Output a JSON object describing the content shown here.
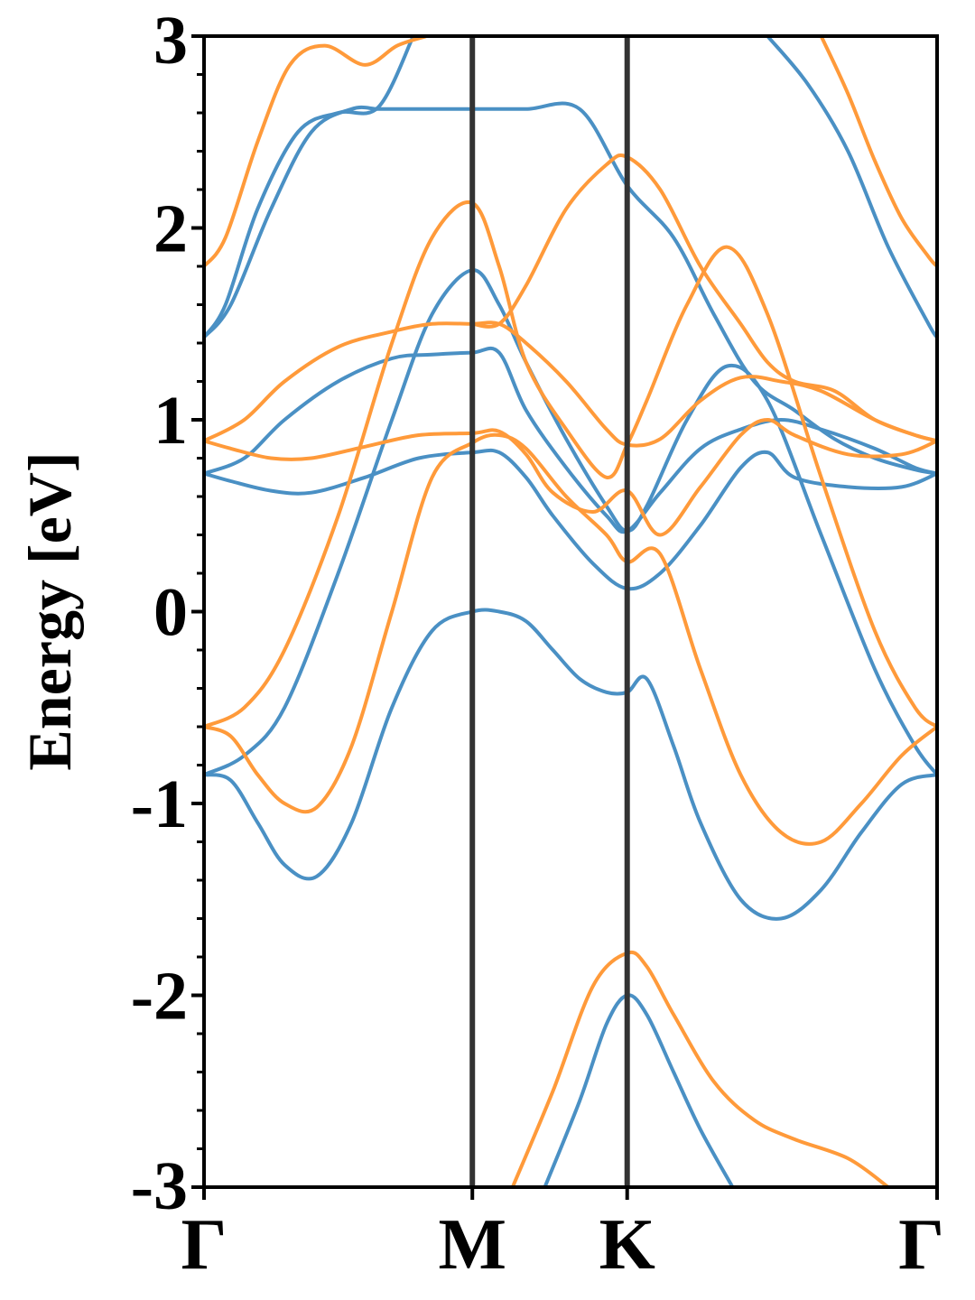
{
  "chart_data": {
    "type": "line",
    "title": "",
    "ylabel": "Energy [eV]",
    "xlabel": "",
    "ylim": [
      -3,
      3
    ],
    "xlim": [
      0,
      2.732
    ],
    "y_ticks": [
      "-3",
      "-2",
      "-1",
      "0",
      "1",
      "2",
      "3"
    ],
    "y_tick_values": [
      -3,
      -2,
      -1,
      0,
      1,
      2,
      3
    ],
    "k_points": [
      {
        "label": "Γ",
        "x": 0
      },
      {
        "label": "M",
        "x": 1.0
      },
      {
        "label": "K",
        "x": 1.577
      },
      {
        "label": "Γ",
        "x": 2.732
      }
    ],
    "grid": false,
    "legend": "none",
    "colors": {
      "spin_a": "#4a90c4",
      "spin_b": "#ff9a3a",
      "axis": "#000000",
      "kline": "#333333"
    },
    "series": [
      {
        "group": "spin_a",
        "x": [
          0,
          0.1,
          0.2,
          0.3,
          0.42,
          0.55,
          0.7,
          0.85,
          1.0,
          1.1,
          1.2,
          1.3,
          1.4,
          1.5,
          1.577,
          1.65,
          1.75,
          1.85,
          2.0,
          2.15,
          2.3,
          2.45,
          2.6,
          2.732
        ],
        "y": [
          -0.85,
          -0.88,
          -1.1,
          -1.32,
          -1.38,
          -1.1,
          -0.5,
          -0.1,
          0.0,
          0.0,
          -0.05,
          -0.2,
          -0.35,
          -0.42,
          -0.42,
          -0.35,
          -0.7,
          -1.1,
          -1.5,
          -1.6,
          -1.45,
          -1.15,
          -0.9,
          -0.85
        ]
      },
      {
        "group": "spin_a",
        "x": [
          0,
          0.15,
          0.3,
          0.5,
          0.7,
          0.85,
          1.0,
          1.1,
          1.2,
          1.35,
          1.5,
          1.577,
          1.65,
          1.8,
          1.95,
          2.1,
          2.3,
          2.5,
          2.65,
          2.732
        ],
        "y": [
          -0.85,
          -0.75,
          -0.5,
          0.2,
          1.0,
          1.55,
          1.78,
          1.6,
          1.3,
          0.9,
          0.55,
          0.42,
          0.55,
          1.0,
          1.28,
          1.1,
          0.4,
          -0.3,
          -0.7,
          -0.85
        ]
      },
      {
        "group": "spin_a",
        "x": [
          0,
          0.1,
          0.25,
          0.4,
          0.6,
          0.8,
          1.0,
          1.1,
          1.2,
          1.3,
          1.45,
          1.577,
          1.7,
          1.85,
          2.0,
          2.1,
          2.2,
          2.4,
          2.6,
          2.732
        ],
        "y": [
          0.72,
          0.68,
          0.63,
          0.62,
          0.7,
          0.8,
          0.83,
          0.83,
          0.7,
          0.5,
          0.25,
          0.12,
          0.2,
          0.45,
          0.75,
          0.83,
          0.7,
          0.65,
          0.65,
          0.72
        ]
      },
      {
        "group": "spin_a",
        "x": [
          0,
          0.15,
          0.3,
          0.5,
          0.7,
          0.85,
          1.0,
          1.1,
          1.2,
          1.35,
          1.5,
          1.577,
          1.7,
          1.85,
          2.0,
          2.15,
          2.3,
          2.5,
          2.65,
          2.732
        ],
        "y": [
          0.72,
          0.8,
          1.0,
          1.2,
          1.32,
          1.34,
          1.35,
          1.35,
          1.05,
          0.75,
          0.5,
          0.42,
          0.62,
          0.85,
          0.95,
          1.0,
          0.95,
          0.85,
          0.75,
          0.72
        ]
      },
      {
        "group": "spin_a",
        "x": [
          0,
          0.1,
          0.25,
          0.4,
          0.55,
          0.65,
          0.75,
          0.85,
          1.0,
          1.2,
          1.4,
          1.577,
          1.75,
          1.9,
          2.05,
          2.2,
          2.35,
          2.5,
          2.65,
          2.732
        ],
        "y": [
          1.43,
          1.6,
          2.1,
          2.5,
          2.62,
          2.62,
          2.62,
          2.62,
          2.62,
          2.62,
          2.62,
          2.22,
          1.95,
          1.55,
          1.2,
          1.05,
          0.9,
          0.8,
          0.74,
          0.72
        ]
      },
      {
        "group": "spin_a",
        "x": [
          0,
          0.08,
          0.2,
          0.35,
          0.5,
          0.65,
          0.78
        ],
        "y": [
          1.43,
          1.6,
          2.1,
          2.5,
          2.6,
          2.63,
          3.0
        ]
      },
      {
        "group": "spin_a",
        "x": [
          2.1,
          2.25,
          2.4,
          2.55,
          2.7,
          2.732
        ],
        "y": [
          3.0,
          2.75,
          2.4,
          1.9,
          1.5,
          1.43
        ]
      },
      {
        "group": "spin_a",
        "x": [
          1.27,
          1.4,
          1.5,
          1.577,
          1.65,
          1.75,
          1.85,
          1.97
        ],
        "y": [
          -3.0,
          -2.55,
          -2.15,
          -2.0,
          -2.1,
          -2.4,
          -2.7,
          -3.0
        ]
      },
      {
        "group": "spin_b",
        "x": [
          0,
          0.1,
          0.2,
          0.3,
          0.42,
          0.55,
          0.7,
          0.85,
          1.0,
          1.1,
          1.2,
          1.35,
          1.5,
          1.577,
          1.7,
          1.85,
          2.0,
          2.15,
          2.3,
          2.45,
          2.6,
          2.732
        ],
        "y": [
          -0.6,
          -0.65,
          -0.85,
          -1.0,
          -1.02,
          -0.7,
          0.0,
          0.7,
          0.88,
          0.92,
          0.85,
          0.6,
          0.4,
          0.26,
          0.3,
          -0.3,
          -0.85,
          -1.15,
          -1.2,
          -1.0,
          -0.75,
          -0.6
        ]
      },
      {
        "group": "spin_b",
        "x": [
          0,
          0.15,
          0.3,
          0.5,
          0.7,
          0.85,
          1.0,
          1.1,
          1.2,
          1.35,
          1.5,
          1.577,
          1.65,
          1.8,
          1.95,
          2.1,
          2.3,
          2.5,
          2.65,
          2.732
        ],
        "y": [
          -0.6,
          -0.5,
          -0.2,
          0.5,
          1.4,
          1.95,
          2.13,
          1.8,
          1.3,
          0.95,
          0.7,
          0.87,
          1.1,
          1.6,
          1.9,
          1.55,
          0.7,
          -0.1,
          -0.5,
          -0.6
        ]
      },
      {
        "group": "spin_b",
        "x": [
          0,
          0.1,
          0.25,
          0.4,
          0.6,
          0.8,
          1.0,
          1.1,
          1.2,
          1.3,
          1.45,
          1.577,
          1.7,
          1.85,
          2.0,
          2.1,
          2.2,
          2.4,
          2.6,
          2.732
        ],
        "y": [
          0.89,
          0.85,
          0.8,
          0.8,
          0.86,
          0.92,
          0.93,
          0.94,
          0.82,
          0.62,
          0.52,
          0.63,
          0.4,
          0.65,
          0.92,
          1.0,
          0.92,
          0.82,
          0.82,
          0.89
        ]
      },
      {
        "group": "spin_b",
        "x": [
          0,
          0.15,
          0.3,
          0.5,
          0.7,
          0.85,
          1.0,
          1.1,
          1.2,
          1.35,
          1.5,
          1.577,
          1.7,
          1.85,
          2.0,
          2.15,
          2.3,
          2.5,
          2.65,
          2.732
        ],
        "y": [
          0.89,
          1.0,
          1.2,
          1.38,
          1.46,
          1.5,
          1.5,
          1.5,
          1.4,
          1.2,
          0.95,
          0.87,
          0.9,
          1.1,
          1.22,
          1.2,
          1.15,
          1.0,
          0.92,
          0.89
        ]
      },
      {
        "group": "spin_b",
        "x": [
          1.0,
          1.1,
          1.2,
          1.35,
          1.5,
          1.577,
          1.7,
          1.85,
          2.0,
          2.1,
          2.2,
          2.35,
          2.5,
          2.65,
          2.732
        ],
        "y": [
          1.5,
          1.5,
          1.7,
          2.1,
          2.33,
          2.37,
          2.2,
          1.8,
          1.5,
          1.3,
          1.2,
          1.15,
          1.0,
          0.92,
          0.89
        ]
      },
      {
        "group": "spin_b",
        "x": [
          0,
          0.08,
          0.2,
          0.32,
          0.45,
          0.6,
          0.72,
          0.83
        ],
        "y": [
          1.8,
          1.95,
          2.45,
          2.85,
          2.95,
          2.85,
          2.95,
          3.0
        ]
      },
      {
        "group": "spin_b",
        "x": [
          2.3,
          2.4,
          2.5,
          2.6,
          2.7,
          2.732
        ],
        "y": [
          3.0,
          2.7,
          2.35,
          2.05,
          1.85,
          1.8
        ]
      },
      {
        "group": "spin_b",
        "x": [
          1.15,
          1.3,
          1.45,
          1.577,
          1.65,
          1.75,
          1.9,
          2.05,
          2.2,
          2.4,
          2.55
        ],
        "y": [
          -3.0,
          -2.5,
          -1.95,
          -1.78,
          -1.85,
          -2.1,
          -2.45,
          -2.65,
          -2.75,
          -2.85,
          -3.0
        ]
      }
    ]
  }
}
